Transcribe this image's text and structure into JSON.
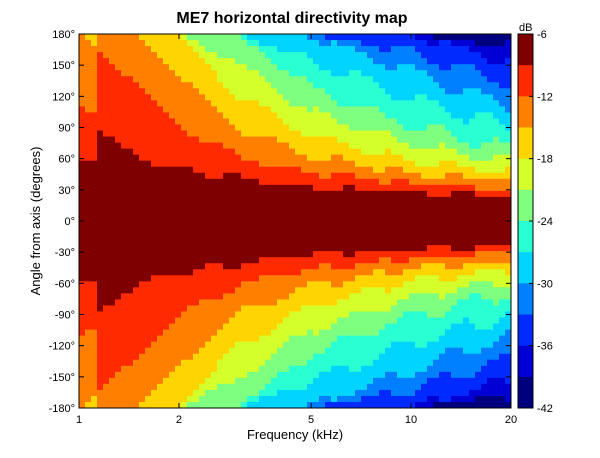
{
  "chart_data": {
    "type": "heatmap",
    "title": "ME7 horizontal directivity map",
    "xlabel": "Frequency (kHz)",
    "ylabel": "Angle from axis (degrees)",
    "x_scale": "log",
    "xlim": [
      1,
      20
    ],
    "ylim": [
      -180,
      180
    ],
    "x_ticks": [
      1,
      2,
      5,
      10,
      20
    ],
    "x_tick_labels": [
      "1",
      "2",
      "5",
      "10",
      "20"
    ],
    "y_ticks": [
      180,
      150,
      120,
      90,
      60,
      30,
      0,
      -30,
      -60,
      -90,
      -120,
      -150,
      -180
    ],
    "y_tick_labels": [
      "180°",
      "150°",
      "120°",
      "90°",
      "60°",
      "30°",
      "0°",
      "-30°",
      "-60°",
      "-90°",
      "-120°",
      "-150°",
      "-180°"
    ],
    "colorbar": {
      "label": "dB",
      "range": [
        -42,
        -6
      ],
      "ticks": [
        -6,
        -12,
        -18,
        -24,
        -30,
        -36,
        -42
      ],
      "levels": [
        {
          "from": -9,
          "to": -6,
          "color": "#7f0000"
        },
        {
          "from": -12,
          "to": -9,
          "color": "#ff2a00"
        },
        {
          "from": -15,
          "to": -12,
          "color": "#ff7f00"
        },
        {
          "from": -18,
          "to": -15,
          "color": "#ffd400"
        },
        {
          "from": -21,
          "to": -18,
          "color": "#d4ff2a"
        },
        {
          "from": -24,
          "to": -21,
          "color": "#7fff7f"
        },
        {
          "from": -27,
          "to": -24,
          "color": "#2affd4"
        },
        {
          "from": -30,
          "to": -27,
          "color": "#00d4ff"
        },
        {
          "from": -33,
          "to": -30,
          "color": "#007fff"
        },
        {
          "from": -36,
          "to": -33,
          "color": "#002aff"
        },
        {
          "from": -39,
          "to": -36,
          "color": "#0000d4"
        },
        {
          "from": -42,
          "to": -39,
          "color": "#00007f"
        }
      ]
    },
    "contour_boundaries_deg": {
      "frequency_khz": [
        1,
        1.5,
        2,
        3,
        5,
        10,
        20
      ],
      "level_-9dB": [
        100,
        62,
        50,
        42,
        33,
        28,
        24
      ],
      "level_-12dB": [
        180,
        130,
        92,
        62,
        46,
        36,
        30
      ],
      "level_-15dB": [
        180,
        180,
        140,
        90,
        62,
        46,
        38
      ],
      "level_-18dB": [
        180,
        180,
        180,
        122,
        82,
        58,
        46
      ],
      "level_-24dB": [
        180,
        180,
        180,
        180,
        128,
        90,
        68
      ],
      "level_-30dB": [
        180,
        180,
        180,
        180,
        180,
        145,
        110
      ],
      "level_-36dB": [
        180,
        180,
        180,
        180,
        180,
        180,
        155
      ]
    }
  }
}
